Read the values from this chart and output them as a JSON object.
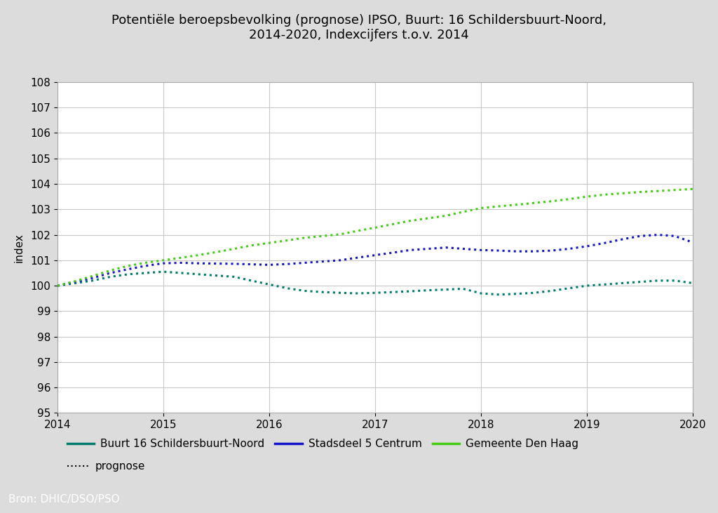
{
  "title_line1": "Potentiële beroepsbevolking (prognose) IPSO, Buurt: 16 Schildersbuurt-Noord,",
  "title_line2": "2014-2020, Indexcijfers t.o.v. 2014",
  "ylabel": "index",
  "source": "Bron: DHIC/DSO/PSO",
  "xlim": [
    2014,
    2020
  ],
  "ylim": [
    95,
    108
  ],
  "yticks": [
    95,
    96,
    97,
    98,
    99,
    100,
    101,
    102,
    103,
    104,
    105,
    106,
    107,
    108
  ],
  "xticks": [
    2014,
    2015,
    2016,
    2017,
    2018,
    2019,
    2020
  ],
  "background_color": "#dcdcdc",
  "plot_bg_color": "#ffffff",
  "teal_color": "#007b6e",
  "blue_color": "#1414cc",
  "green_color": "#44cc11",
  "source_bg_color": "#008b8b",
  "legend_entries": [
    "Buurt 16 Schildersbuurt-Noord",
    "Stadsdeel 5 Centrum",
    "Gemeente Den Haag",
    "prognose"
  ],
  "series": {
    "buurt": {
      "x": [
        2014.0,
        2014.17,
        2014.33,
        2014.5,
        2014.67,
        2014.83,
        2015.0,
        2015.17,
        2015.33,
        2015.5,
        2015.67,
        2015.83,
        2016.0,
        2016.17,
        2016.33,
        2016.5,
        2016.67,
        2016.83,
        2017.0,
        2017.17,
        2017.33,
        2017.5,
        2017.67,
        2017.83,
        2018.0,
        2018.17,
        2018.33,
        2018.5,
        2018.67,
        2018.83,
        2019.0,
        2019.17,
        2019.33,
        2019.5,
        2019.67,
        2019.83,
        2020.0
      ],
      "y": [
        100.0,
        100.1,
        100.2,
        100.35,
        100.45,
        100.5,
        100.55,
        100.5,
        100.45,
        100.4,
        100.35,
        100.2,
        100.05,
        99.9,
        99.8,
        99.75,
        99.72,
        99.7,
        99.72,
        99.75,
        99.78,
        99.82,
        99.85,
        99.88,
        99.7,
        99.65,
        99.68,
        99.72,
        99.8,
        99.9,
        100.0,
        100.05,
        100.1,
        100.15,
        100.2,
        100.2,
        100.1
      ]
    },
    "stadsdeel": {
      "x": [
        2014.0,
        2014.17,
        2014.33,
        2014.5,
        2014.67,
        2014.83,
        2015.0,
        2015.17,
        2015.33,
        2015.5,
        2015.67,
        2015.83,
        2016.0,
        2016.17,
        2016.33,
        2016.5,
        2016.67,
        2016.83,
        2017.0,
        2017.17,
        2017.33,
        2017.5,
        2017.67,
        2017.83,
        2018.0,
        2018.17,
        2018.33,
        2018.5,
        2018.67,
        2018.83,
        2019.0,
        2019.17,
        2019.33,
        2019.5,
        2019.67,
        2019.83,
        2020.0
      ],
      "y": [
        100.0,
        100.15,
        100.3,
        100.5,
        100.65,
        100.78,
        100.88,
        100.9,
        100.88,
        100.87,
        100.86,
        100.84,
        100.82,
        100.85,
        100.9,
        100.95,
        101.0,
        101.1,
        101.2,
        101.3,
        101.4,
        101.45,
        101.5,
        101.45,
        101.4,
        101.38,
        101.35,
        101.35,
        101.38,
        101.45,
        101.55,
        101.68,
        101.82,
        101.95,
        102.0,
        101.95,
        101.7
      ]
    },
    "gemeente": {
      "x": [
        2014.0,
        2014.17,
        2014.33,
        2014.5,
        2014.67,
        2014.83,
        2015.0,
        2015.17,
        2015.33,
        2015.5,
        2015.67,
        2015.83,
        2016.0,
        2016.17,
        2016.33,
        2016.5,
        2016.67,
        2016.83,
        2017.0,
        2017.17,
        2017.33,
        2017.5,
        2017.67,
        2017.83,
        2018.0,
        2018.17,
        2018.33,
        2018.5,
        2018.67,
        2018.83,
        2019.0,
        2019.17,
        2019.33,
        2019.5,
        2019.67,
        2019.83,
        2020.0
      ],
      "y": [
        100.0,
        100.18,
        100.38,
        100.6,
        100.78,
        100.9,
        101.0,
        101.1,
        101.2,
        101.32,
        101.45,
        101.58,
        101.68,
        101.78,
        101.88,
        101.95,
        102.02,
        102.15,
        102.28,
        102.42,
        102.55,
        102.65,
        102.75,
        102.9,
        103.05,
        103.12,
        103.18,
        103.25,
        103.32,
        103.4,
        103.5,
        103.58,
        103.63,
        103.68,
        103.72,
        103.76,
        103.8
      ]
    }
  }
}
